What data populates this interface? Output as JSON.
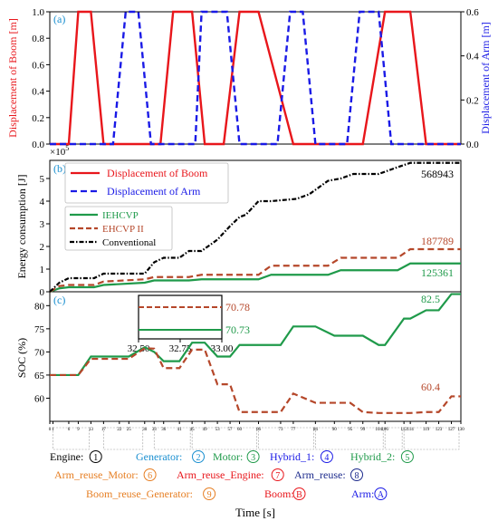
{
  "colors": {
    "boom": "#e8161b",
    "arm": "#1a1ae6",
    "iehcvp": "#1f9a4a",
    "ehcvp2": "#b5472a",
    "conventional": "#000000",
    "panel_label": "#1a8fd0",
    "orange": "#e67e22",
    "navy": "#1c2a8c"
  },
  "chart_data": [
    {
      "panel": "(a)",
      "type": "line",
      "xlim": [
        0,
        130
      ],
      "ylim": [
        0,
        1.0
      ],
      "y2lim": [
        0,
        0.6
      ],
      "ylabel": "Displacement of Boom [m]",
      "y2label": "Displacement of Arm [m]",
      "yticks": [
        "0.0",
        "0.2",
        "0.4",
        "0.6",
        "0.8",
        "1.0"
      ],
      "y2ticks": [
        "0.0",
        "0.2",
        "0.4",
        "0.6"
      ],
      "series": [
        {
          "name": "Displacement of Boom",
          "axis": "left",
          "style": "solid",
          "x": [
            0,
            6,
            9,
            13,
            17,
            30,
            33,
            35,
            39,
            41,
            45,
            49,
            53,
            55,
            60,
            66,
            77,
            84,
            90,
            99,
            106,
            112,
            114,
            119,
            123,
            125,
            130
          ],
          "y": [
            0,
            0,
            1,
            1,
            0,
            0,
            0,
            0,
            1,
            1,
            1,
            0,
            0,
            0,
            1,
            1,
            0,
            0,
            0,
            0,
            1,
            1,
            1,
            0,
            0,
            0,
            0
          ]
        },
        {
          "name": "Displacement of Arm",
          "axis": "right",
          "style": "dashed",
          "x": [
            0,
            20,
            24,
            28,
            32,
            46,
            48,
            56,
            60,
            72,
            76,
            80,
            84,
            94,
            98,
            104,
            108,
            126,
            130
          ],
          "y": [
            0,
            0,
            0.6,
            0.6,
            0,
            0,
            0.6,
            0.6,
            0,
            0,
            0.6,
            0.6,
            0,
            0,
            0.6,
            0.6,
            0,
            0,
            0
          ]
        }
      ]
    },
    {
      "panel": "(b)",
      "type": "line",
      "xlim": [
        0,
        130
      ],
      "ylim": [
        0,
        5.8
      ],
      "multiplier": "×10",
      "multiplier_exp": "5",
      "ylabel": "Energy consumption [J]",
      "yticks": [
        "0",
        "1",
        "2",
        "3",
        "4",
        "5"
      ],
      "series": [
        {
          "name": "IEHCVP",
          "style": "solid",
          "x": [
            0,
            3,
            6,
            14,
            17,
            30,
            33,
            44,
            48,
            66,
            70,
            88,
            92,
            110,
            114,
            130
          ],
          "y": [
            0,
            0.15,
            0.2,
            0.2,
            0.3,
            0.4,
            0.5,
            0.5,
            0.55,
            0.55,
            0.75,
            0.75,
            0.95,
            0.95,
            1.25,
            1.25
          ]
        },
        {
          "name": "EHCVP II",
          "style": "dashed",
          "x": [
            0,
            3,
            6,
            14,
            17,
            30,
            33,
            44,
            48,
            66,
            70,
            88,
            92,
            110,
            114,
            130
          ],
          "y": [
            0,
            0.25,
            0.3,
            0.3,
            0.45,
            0.55,
            0.65,
            0.65,
            0.75,
            0.75,
            1.15,
            1.15,
            1.5,
            1.5,
            1.88,
            1.88
          ]
        },
        {
          "name": "Conventional",
          "style": "dashdot",
          "x": [
            0,
            3,
            6,
            14,
            17,
            30,
            33,
            36,
            41,
            44,
            48,
            53,
            57,
            60,
            62,
            66,
            70,
            78,
            82,
            86,
            88,
            92,
            96,
            100,
            104,
            108,
            110,
            114,
            130
          ],
          "y": [
            0,
            0.4,
            0.6,
            0.6,
            0.8,
            0.8,
            1.3,
            1.5,
            1.5,
            1.8,
            1.8,
            2.3,
            2.9,
            3.3,
            3.4,
            4.0,
            4.0,
            4.1,
            4.3,
            4.7,
            4.9,
            5.0,
            5.2,
            5.2,
            5.2,
            5.4,
            5.5,
            5.69,
            5.69
          ]
        }
      ],
      "annotations": [
        "568943",
        "187789",
        "125361"
      ]
    },
    {
      "panel": "(c)",
      "type": "line",
      "xlim": [
        0,
        130
      ],
      "ylim": [
        55,
        83
      ],
      "ylabel": "SOC (%)",
      "xlabel": "Time [s]",
      "yticks": [
        "60",
        "65",
        "70",
        "75",
        "80"
      ],
      "xticks": [
        "0",
        "1",
        "6",
        "9",
        "13",
        "17",
        "22",
        "25",
        "30",
        "33",
        "36",
        "41",
        "45",
        "49",
        "53",
        "57",
        "60",
        "66",
        "73",
        "77",
        "84",
        "90",
        "95",
        "99",
        "104",
        "106",
        "112",
        "114",
        "119",
        "123",
        "127",
        "130"
      ],
      "series": [
        {
          "name": "IEHCVP",
          "style": "solid",
          "x": [
            0,
            6,
            9,
            13,
            17,
            22,
            25,
            30,
            33,
            36,
            41,
            45,
            49,
            53,
            57,
            60,
            66,
            73,
            77,
            84,
            90,
            95,
            99,
            104,
            106,
            112,
            114,
            119,
            123,
            127,
            130
          ],
          "y": [
            65,
            65,
            65,
            69,
            69,
            69,
            69,
            71,
            70,
            68,
            68,
            72,
            72,
            69,
            69,
            71.5,
            71.5,
            71.5,
            75.5,
            75.5,
            73.5,
            73.5,
            73.5,
            71.5,
            71.5,
            77.2,
            77.2,
            79,
            79,
            82.5,
            82.5
          ]
        },
        {
          "name": "EHCVP II",
          "style": "dashed",
          "x": [
            0,
            6,
            9,
            13,
            17,
            22,
            25,
            30,
            33,
            36,
            41,
            45,
            49,
            53,
            57,
            60,
            66,
            73,
            77,
            84,
            90,
            95,
            99,
            104,
            106,
            112,
            114,
            119,
            123,
            127,
            130
          ],
          "y": [
            65,
            65,
            65,
            68.5,
            68.5,
            68.5,
            68.5,
            70.8,
            70.7,
            66.5,
            66.5,
            70.5,
            70.5,
            63,
            63,
            57,
            57,
            57,
            61,
            59,
            59,
            59,
            57,
            56.8,
            56.8,
            56.8,
            56.8,
            57,
            57,
            60.4,
            60.4
          ]
        }
      ],
      "annotations": [
        "82.5",
        "60.4"
      ],
      "inset": {
        "xticks": [
          "32.50",
          "32.75",
          "33.00"
        ],
        "values": [
          "70.78",
          "70.73"
        ]
      }
    }
  ],
  "legend_b_top": [
    "Displacement of Boom",
    "Displacement of Arm"
  ],
  "legend_b_bottom": [
    "IEHCVP",
    "EHCVP II",
    "Conventional"
  ],
  "mode_legend": {
    "row1": [
      {
        "label": "Engine:",
        "sym": "1"
      },
      {
        "label": "Generator:",
        "sym": "2"
      },
      {
        "label": "Motor:",
        "sym": "3"
      },
      {
        "label": "Hybrid_1:",
        "sym": "4"
      },
      {
        "label": "Hybrid_2:",
        "sym": "5"
      }
    ],
    "row2": [
      {
        "label": "Arm_reuse_Motor:",
        "sym": "6"
      },
      {
        "label": "Arm_reuse_Engine:",
        "sym": "7"
      },
      {
        "label": "Arm_reuse:",
        "sym": "8"
      }
    ],
    "row3": [
      {
        "label": "Boom_reuse_Generator:",
        "sym": "9"
      },
      {
        "label": "Boom:",
        "sym": "B"
      },
      {
        "label": "Arm:",
        "sym": "A"
      }
    ]
  }
}
